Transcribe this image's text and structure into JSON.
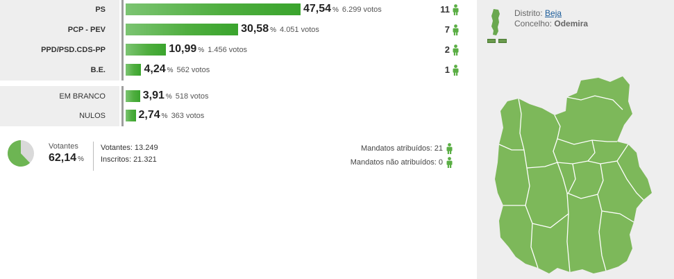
{
  "parties": [
    {
      "label": "PS",
      "pct": "47,54",
      "votes": "6.299 votos",
      "seats": "11",
      "share": 47.54
    },
    {
      "label": "PCP - PEV",
      "pct": "30,58",
      "votes": "4.051 votos",
      "seats": "7",
      "share": 30.58
    },
    {
      "label": "PPD/PSD.CDS-PP",
      "pct": "10,99",
      "votes": "1.456 votos",
      "seats": "2",
      "share": 10.99
    },
    {
      "label": "B.E.",
      "pct": "4,24",
      "votes": "562 votos",
      "seats": "1",
      "share": 4.24
    }
  ],
  "others": [
    {
      "label": "EM BRANCO",
      "pct": "3,91",
      "votes": "518 votos",
      "share": 3.91
    },
    {
      "label": "NULOS",
      "pct": "2,74",
      "votes": "363 votos",
      "share": 2.74
    }
  ],
  "summary": {
    "votantes_title": "Votantes",
    "votantes_pct": "62,14",
    "votantes_share": 62.14,
    "votantes_line": "Votantes: 13.249",
    "inscritos_line": "Inscritos: 21.321",
    "mandatos_atribuidos": "Mandatos atribuídos: 21",
    "mandatos_nao_atribuidos": "Mandatos não atribuídos: 0"
  },
  "location": {
    "distrito_label": "Distrito:",
    "distrito": "Beja",
    "concelho_label": "Concelho:",
    "concelho": "Odemira"
  },
  "pct_sign": "%",
  "colors": {
    "bar": "#4fae3f",
    "map_fill": "#7db85a",
    "panel_bg": "#eeeeee"
  },
  "icons": {
    "seat": "person-icon",
    "pie": "pie-chart-icon",
    "map": "region-map"
  }
}
